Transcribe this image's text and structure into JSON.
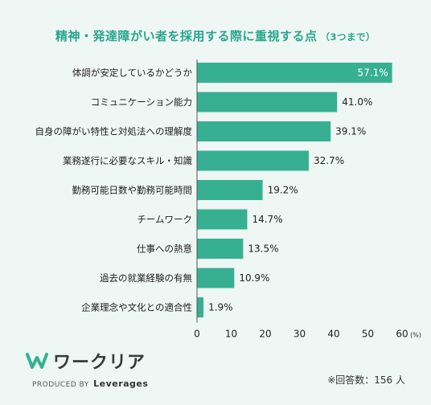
{
  "title": "精神・発達障がい者を採用する際に重視する点",
  "subtitle": "（3つまで）",
  "chart_data": {
    "type": "bar",
    "orientation": "horizontal",
    "categories": [
      "体調が安定しているかどうか",
      "コミュニケーション能力",
      "自身の障がい特性と対処法への理解度",
      "業務遂行に必要なスキル・知識",
      "勤務可能日数や勤務可能時間",
      "チームワーク",
      "仕事への熱意",
      "過去の就業経験の有無",
      "企業理念や文化との適合性"
    ],
    "values": [
      57.1,
      41.0,
      39.1,
      32.7,
      19.2,
      14.7,
      13.5,
      10.9,
      1.9
    ],
    "value_labels": [
      "57.1%",
      "41.0%",
      "39.1%",
      "32.7%",
      "19.2%",
      "14.7%",
      "13.5%",
      "10.9%",
      "1.9%"
    ],
    "xlim": [
      0,
      60
    ],
    "xticks": [
      0,
      10,
      20,
      30,
      40,
      50,
      60
    ],
    "x_unit": "(%)",
    "bar_color": "#37b092",
    "grid": false
  },
  "logo": {
    "brand": "ワークリア",
    "produced_by": "PRODUCED BY",
    "company": "Leverages"
  },
  "respondents": "※回答数：156 人"
}
